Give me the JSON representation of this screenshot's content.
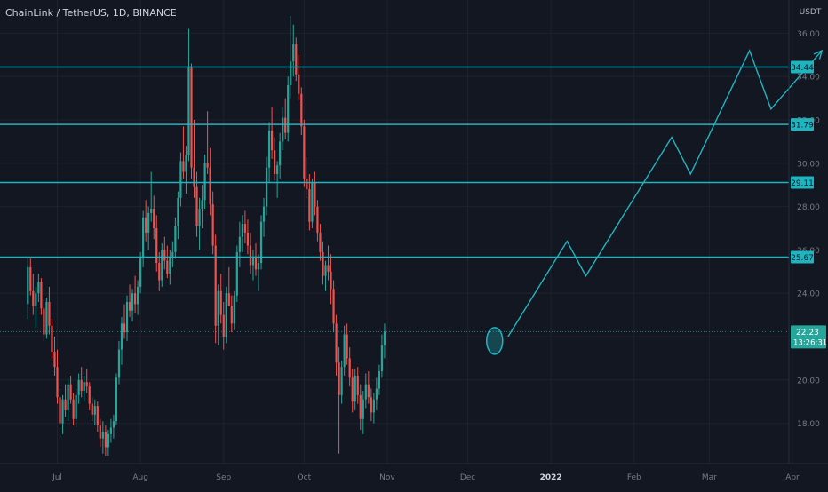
{
  "header": {
    "title": "ChainLink / TetherUS, 1D, BINANCE"
  },
  "axis": {
    "currency": "USDT",
    "price_ticks": [
      "36.00",
      "34.00",
      "32.00",
      "30.00",
      "28.00",
      "26.00",
      "24.00",
      "22.00",
      "20.00",
      "18.00"
    ],
    "price_tick_values": [
      36,
      34,
      32,
      30,
      28,
      26,
      24,
      22,
      20,
      18
    ],
    "time_ticks": [
      "Jul",
      "Aug",
      "Sep",
      "Oct",
      "Nov",
      "Dec",
      "2022",
      "Feb",
      "Mar",
      "Apr"
    ],
    "time_tick_days": [
      0,
      31,
      62,
      92,
      123,
      153,
      184,
      215,
      243,
      274
    ]
  },
  "price_badges": {
    "current_price": "22.23",
    "countdown": "13:26:31"
  },
  "colors": {
    "background": "#131722",
    "grid": "#1e222d",
    "up": "#26a69a",
    "down": "#ef5350",
    "level_line": "#1fb5c0",
    "badge": "#1fb5c0",
    "text": "#d1d4dc",
    "axis_text": "#787b86"
  },
  "chart_data": {
    "type": "candlestick",
    "symbol": "ChainLink / TetherUS",
    "interval": "1D",
    "exchange": "BINANCE",
    "y_range": [
      16.5,
      37.8
    ],
    "x_axis_note": "x values are days since Jul 1 2021",
    "horizontal_levels": [
      {
        "value": 34.44,
        "label": "34.44"
      },
      {
        "value": 31.79,
        "label": "31.79"
      },
      {
        "value": 29.11,
        "label": "29.11"
      },
      {
        "value": 25.67,
        "label": "25.67"
      }
    ],
    "current_price_line": 22.23,
    "projection_path": [
      {
        "x": 168,
        "y": 22.0
      },
      {
        "x": 190,
        "y": 26.4
      },
      {
        "x": 197,
        "y": 24.8
      },
      {
        "x": 229,
        "y": 31.2
      },
      {
        "x": 236,
        "y": 29.5
      },
      {
        "x": 258,
        "y": 35.2
      },
      {
        "x": 266,
        "y": 32.5
      },
      {
        "x": 285,
        "y": 35.2
      }
    ],
    "highlight_ellipse": {
      "x": 163,
      "y": 21.8
    },
    "candles": [
      [
        -11,
        23.5,
        25.7,
        22.8,
        25.2
      ],
      [
        -10,
        25.2,
        25.6,
        23.9,
        24.1
      ],
      [
        -9,
        24.1,
        24.9,
        23.0,
        23.4
      ],
      [
        -8,
        23.4,
        24.3,
        22.4,
        24.0
      ],
      [
        -7,
        24.0,
        24.9,
        23.6,
        24.5
      ],
      [
        -6,
        24.5,
        24.7,
        23.0,
        23.3
      ],
      [
        -5,
        23.3,
        23.7,
        21.8,
        22.1
      ],
      [
        -4,
        22.1,
        23.8,
        21.9,
        23.6
      ],
      [
        -3,
        23.6,
        24.3,
        22.1,
        22.5
      ],
      [
        -2,
        22.5,
        22.8,
        21.0,
        21.3
      ],
      [
        -1,
        21.3,
        22.0,
        20.2,
        20.6
      ],
      [
        0,
        20.6,
        21.4,
        18.9,
        19.2
      ],
      [
        1,
        19.2,
        19.6,
        17.6,
        18.0
      ],
      [
        2,
        18.0,
        19.3,
        17.5,
        19.1
      ],
      [
        3,
        19.1,
        19.8,
        18.3,
        18.6
      ],
      [
        4,
        18.6,
        20.0,
        18.1,
        19.8
      ],
      [
        5,
        19.8,
        20.2,
        18.9,
        19.1
      ],
      [
        6,
        19.1,
        19.4,
        17.9,
        18.2
      ],
      [
        7,
        18.2,
        19.6,
        17.8,
        19.3
      ],
      [
        8,
        19.3,
        20.3,
        18.9,
        20.0
      ],
      [
        9,
        20.0,
        20.6,
        19.2,
        19.5
      ],
      [
        10,
        19.5,
        20.2,
        19.0,
        19.9
      ],
      [
        11,
        19.9,
        20.5,
        19.4,
        19.7
      ],
      [
        12,
        19.7,
        19.9,
        18.6,
        18.9
      ],
      [
        13,
        18.9,
        19.2,
        18.1,
        18.4
      ],
      [
        14,
        18.4,
        19.1,
        17.9,
        18.8
      ],
      [
        15,
        18.8,
        19.0,
        17.6,
        17.9
      ],
      [
        16,
        17.9,
        18.2,
        16.9,
        17.3
      ],
      [
        17,
        17.3,
        18.1,
        16.6,
        17.6
      ],
      [
        18,
        17.6,
        17.9,
        16.5,
        16.9
      ],
      [
        19,
        16.9,
        17.7,
        16.5,
        17.5
      ],
      [
        20,
        17.5,
        18.2,
        17.1,
        17.8
      ],
      [
        21,
        17.8,
        18.4,
        17.3,
        18.1
      ],
      [
        22,
        18.1,
        20.3,
        17.9,
        20.1
      ],
      [
        23,
        20.1,
        21.8,
        19.8,
        21.4
      ],
      [
        24,
        21.4,
        22.9,
        20.7,
        22.6
      ],
      [
        25,
        22.6,
        23.5,
        21.9,
        22.2
      ],
      [
        26,
        22.2,
        23.9,
        21.8,
        23.6
      ],
      [
        27,
        23.6,
        24.4,
        22.9,
        23.2
      ],
      [
        28,
        23.2,
        24.2,
        22.7,
        24.0
      ],
      [
        29,
        24.0,
        24.8,
        23.1,
        23.5
      ],
      [
        30,
        23.5,
        24.6,
        23.0,
        24.3
      ],
      [
        31,
        24.3,
        25.9,
        24.0,
        25.6
      ],
      [
        32,
        25.6,
        27.8,
        25.2,
        27.5
      ],
      [
        33,
        27.5,
        28.3,
        26.4,
        26.8
      ],
      [
        34,
        26.8,
        28.0,
        26.0,
        27.7
      ],
      [
        35,
        27.7,
        29.6,
        27.3,
        27.9
      ],
      [
        36,
        27.9,
        28.5,
        26.5,
        27.0
      ],
      [
        37,
        27.0,
        27.6,
        25.0,
        25.4
      ],
      [
        38,
        25.4,
        25.9,
        24.1,
        24.6
      ],
      [
        39,
        24.6,
        26.3,
        24.3,
        26.0
      ],
      [
        40,
        26.0,
        26.6,
        25.1,
        25.5
      ],
      [
        41,
        25.5,
        26.2,
        24.7,
        24.9
      ],
      [
        42,
        24.9,
        26.0,
        24.4,
        25.7
      ],
      [
        43,
        25.7,
        26.4,
        25.2,
        25.9
      ],
      [
        44,
        25.9,
        27.5,
        25.6,
        27.1
      ],
      [
        45,
        27.1,
        28.7,
        26.5,
        28.4
      ],
      [
        46,
        28.4,
        30.5,
        28.0,
        30.1
      ],
      [
        47,
        30.1,
        31.7,
        29.3,
        29.6
      ],
      [
        48,
        29.6,
        30.8,
        28.6,
        30.4
      ],
      [
        49,
        30.4,
        36.2,
        30.1,
        34.4
      ],
      [
        50,
        34.4,
        34.6,
        29.3,
        29.8
      ],
      [
        51,
        29.8,
        32.0,
        28.4,
        28.9
      ],
      [
        52,
        28.9,
        29.6,
        26.6,
        27.1
      ],
      [
        53,
        27.1,
        28.4,
        26.0,
        27.9
      ],
      [
        54,
        27.9,
        29.0,
        27.0,
        28.3
      ],
      [
        55,
        28.3,
        30.4,
        27.9,
        30.0
      ],
      [
        56,
        30.0,
        32.4,
        29.5,
        29.8
      ],
      [
        57,
        29.8,
        30.7,
        27.6,
        28.1
      ],
      [
        58,
        28.1,
        28.7,
        25.8,
        26.2
      ],
      [
        59,
        26.2,
        26.7,
        21.7,
        22.5
      ],
      [
        60,
        22.5,
        24.4,
        21.6,
        24.1
      ],
      [
        61,
        24.1,
        24.9,
        22.6,
        23.0
      ],
      [
        62,
        23.0,
        23.6,
        21.4,
        22.0
      ],
      [
        63,
        22.0,
        24.3,
        21.7,
        24.0
      ],
      [
        64,
        24.0,
        25.2,
        23.5,
        23.4
      ],
      [
        65,
        23.4,
        23.9,
        22.2,
        22.6
      ],
      [
        66,
        22.6,
        24.1,
        22.3,
        23.9
      ],
      [
        67,
        23.9,
        26.2,
        23.6,
        25.9
      ],
      [
        68,
        25.9,
        27.3,
        25.2,
        26.6
      ],
      [
        69,
        26.6,
        27.6,
        25.9,
        27.2
      ],
      [
        70,
        27.2,
        27.8,
        26.3,
        26.8
      ],
      [
        71,
        26.8,
        27.4,
        25.8,
        26.2
      ],
      [
        72,
        26.2,
        26.8,
        24.9,
        25.3
      ],
      [
        73,
        25.3,
        26.0,
        24.6,
        25.7
      ],
      [
        74,
        25.7,
        26.3,
        24.8,
        25.1
      ],
      [
        75,
        25.1,
        25.8,
        24.1,
        25.4
      ],
      [
        76,
        25.4,
        27.6,
        25.1,
        27.3
      ],
      [
        77,
        27.3,
        28.4,
        26.6,
        28.0
      ],
      [
        78,
        28.0,
        30.3,
        27.6,
        29.8
      ],
      [
        79,
        29.8,
        31.9,
        29.1,
        31.5
      ],
      [
        80,
        31.5,
        32.6,
        30.2,
        30.6
      ],
      [
        81,
        30.6,
        31.2,
        29.2,
        29.5
      ],
      [
        82,
        29.5,
        30.1,
        28.4,
        29.9
      ],
      [
        83,
        29.9,
        31.4,
        29.3,
        31.0
      ],
      [
        84,
        31.0,
        32.6,
        30.6,
        32.1
      ],
      [
        85,
        32.1,
        33.0,
        31.1,
        31.4
      ],
      [
        86,
        31.4,
        34.0,
        31.0,
        33.6
      ],
      [
        87,
        33.6,
        36.8,
        33.0,
        34.7
      ],
      [
        88,
        34.7,
        36.4,
        34.0,
        35.5
      ],
      [
        89,
        35.5,
        35.8,
        33.8,
        34.1
      ],
      [
        90,
        34.1,
        35.0,
        32.9,
        33.2
      ],
      [
        91,
        33.2,
        33.5,
        31.3,
        31.7
      ],
      [
        92,
        31.7,
        32.0,
        28.9,
        29.3
      ],
      [
        93,
        29.3,
        30.3,
        28.4,
        28.8
      ],
      [
        94,
        28.8,
        29.5,
        26.9,
        27.3
      ],
      [
        95,
        27.3,
        29.3,
        27.0,
        29.1
      ],
      [
        96,
        29.1,
        29.6,
        27.6,
        28.0
      ],
      [
        97,
        28.0,
        28.3,
        26.4,
        26.8
      ],
      [
        98,
        26.8,
        27.2,
        25.5,
        25.9
      ],
      [
        99,
        25.9,
        26.4,
        24.4,
        24.8
      ],
      [
        100,
        24.8,
        25.5,
        24.1,
        25.3
      ],
      [
        101,
        25.3,
        26.2,
        24.6,
        25.0
      ],
      [
        102,
        25.0,
        25.8,
        23.5,
        24.2
      ],
      [
        103,
        24.2,
        24.6,
        22.2,
        22.6
      ],
      [
        104,
        22.6,
        23.0,
        20.2,
        20.8
      ],
      [
        105,
        20.8,
        21.5,
        16.6,
        19.3
      ],
      [
        106,
        19.3,
        20.9,
        18.9,
        20.6
      ],
      [
        107,
        20.6,
        22.5,
        20.2,
        22.1
      ],
      [
        108,
        22.1,
        22.6,
        20.7,
        21.0
      ],
      [
        109,
        21.0,
        21.5,
        19.7,
        20.1
      ],
      [
        110,
        20.1,
        20.5,
        18.5,
        19.0
      ],
      [
        111,
        19.0,
        20.5,
        18.6,
        20.2
      ],
      [
        112,
        20.2,
        20.6,
        18.9,
        19.3
      ],
      [
        113,
        19.3,
        19.8,
        17.7,
        18.2
      ],
      [
        114,
        18.2,
        19.5,
        17.5,
        19.1
      ],
      [
        115,
        19.1,
        20.3,
        18.7,
        19.8
      ],
      [
        116,
        19.8,
        20.4,
        18.9,
        19.2
      ],
      [
        117,
        19.2,
        19.6,
        18.1,
        18.5
      ],
      [
        118,
        18.5,
        19.4,
        18.0,
        19.1
      ],
      [
        119,
        19.1,
        20.1,
        18.6,
        19.6
      ],
      [
        120,
        19.6,
        20.7,
        19.3,
        20.4
      ],
      [
        121,
        20.4,
        22.1,
        20.1,
        21.6
      ],
      [
        122,
        21.6,
        22.6,
        21.0,
        22.23
      ]
    ]
  }
}
